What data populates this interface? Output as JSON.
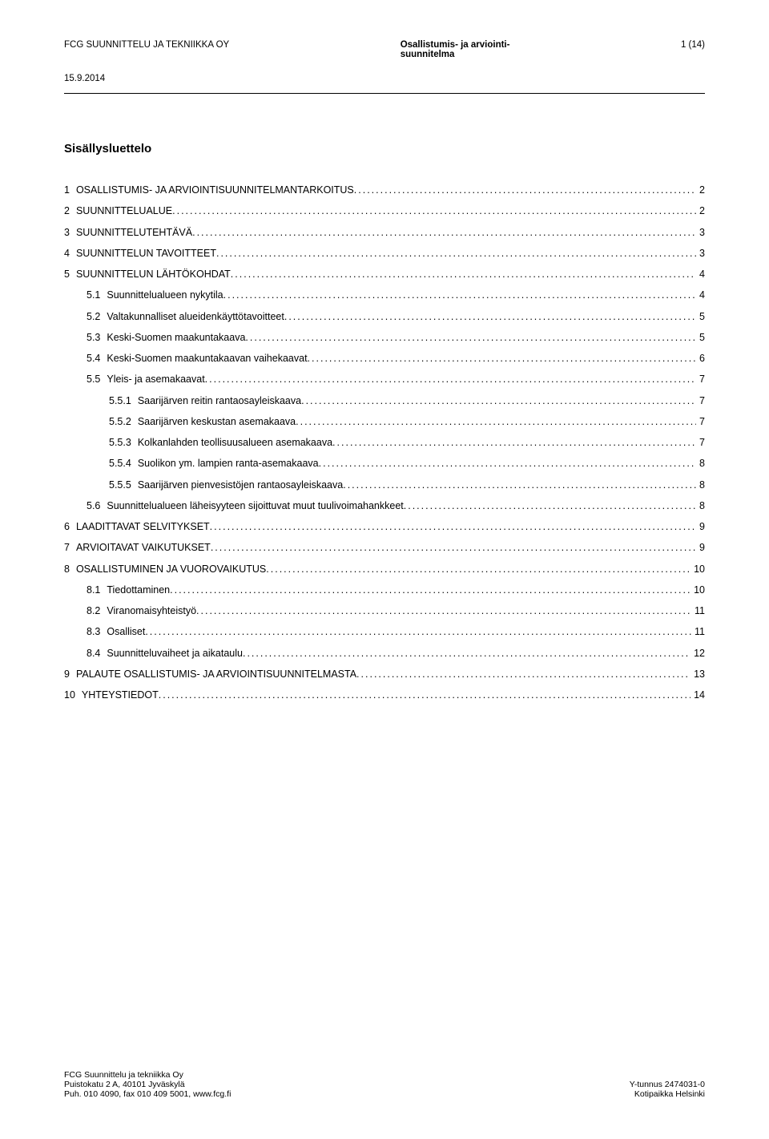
{
  "header": {
    "company": "FCG SUUNNITTELU JA TEKNIIKKA OY",
    "title_line1": "Osallistumis- ja arviointi-",
    "title_line2": "suunnitelma",
    "page": "1 (14)",
    "date": "15.9.2014"
  },
  "toc_title": "Sisällysluettelo",
  "toc": [
    {
      "level": 1,
      "num": "1",
      "label": "OSALLISTUMIS- JA ARVIOINTISUUNNITELMANTARKOITUS",
      "page": "2"
    },
    {
      "level": 1,
      "num": "2",
      "label": "SUUNNITTELUALUE",
      "page": "2"
    },
    {
      "level": 1,
      "num": "3",
      "label": "SUUNNITTELUTEHTÄVÄ",
      "page": "3"
    },
    {
      "level": 1,
      "num": "4",
      "label": "SUUNNITTELUN TAVOITTEET",
      "page": "3"
    },
    {
      "level": 1,
      "num": "5",
      "label": "SUUNNITTELUN LÄHTÖKOHDAT",
      "page": "4"
    },
    {
      "level": 2,
      "num": "5.1",
      "label": "Suunnittelualueen nykytila",
      "page": "4"
    },
    {
      "level": 2,
      "num": "5.2",
      "label": "Valtakunnalliset alueidenkäyttötavoitteet",
      "page": "5"
    },
    {
      "level": 2,
      "num": "5.3",
      "label": "Keski-Suomen maakuntakaava",
      "page": "5"
    },
    {
      "level": 2,
      "num": "5.4",
      "label": "Keski-Suomen maakuntakaavan vaihekaavat",
      "page": "6"
    },
    {
      "level": 2,
      "num": "5.5",
      "label": "Yleis- ja asemakaavat",
      "page": "7"
    },
    {
      "level": 3,
      "num": "5.5.1",
      "label": "Saarijärven reitin rantaosayleiskaava",
      "page": "7"
    },
    {
      "level": 3,
      "num": "5.5.2",
      "label": "Saarijärven keskustan asemakaava",
      "page": "7"
    },
    {
      "level": 3,
      "num": "5.5.3",
      "label": "Kolkanlahden teollisuusalueen asemakaava",
      "page": "7"
    },
    {
      "level": 3,
      "num": "5.5.4",
      "label": "Suolikon ym. lampien ranta-asemakaava",
      "page": "8"
    },
    {
      "level": 3,
      "num": "5.5.5",
      "label": "Saarijärven pienvesistöjen rantaosayleiskaava",
      "page": "8"
    },
    {
      "level": 2,
      "num": "5.6",
      "label": "Suunnittelualueen läheisyyteen sijoittuvat muut tuulivoimahankkeet",
      "page": "8"
    },
    {
      "level": 1,
      "num": "6",
      "label": "LAADITTAVAT SELVITYKSET",
      "page": "9"
    },
    {
      "level": 1,
      "num": "7",
      "label": "ARVIOITAVAT VAIKUTUKSET",
      "page": "9"
    },
    {
      "level": 1,
      "num": "8",
      "label": "OSALLISTUMINEN JA VUOROVAIKUTUS",
      "page": "10"
    },
    {
      "level": 2,
      "num": "8.1",
      "label": "Tiedottaminen",
      "page": "10"
    },
    {
      "level": 2,
      "num": "8.2",
      "label": "Viranomaisyhteistyö",
      "page": "11"
    },
    {
      "level": 2,
      "num": "8.3",
      "label": "Osalliset",
      "page": "11"
    },
    {
      "level": 2,
      "num": "8.4",
      "label": "Suunnitteluvaiheet ja aikataulu",
      "page": "12"
    },
    {
      "level": 1,
      "num": "9",
      "label": "PALAUTE OSALLISTUMIS- JA ARVIOINTISUUNNITELMASTA",
      "page": "13"
    },
    {
      "level": 1,
      "num": "10",
      "label": "YHTEYSTIEDOT",
      "page": "14"
    }
  ],
  "footer": {
    "left_line1": "FCG Suunnittelu ja tekniikka Oy",
    "left_line2": "Puistokatu 2 A, 40101 Jyväskylä",
    "left_line3": "Puh. 010 4090, fax 010 409 5001, www.fcg.fi",
    "right_line1": "Y-tunnus 2474031-0",
    "right_line2": "Kotipaikka Helsinki"
  }
}
